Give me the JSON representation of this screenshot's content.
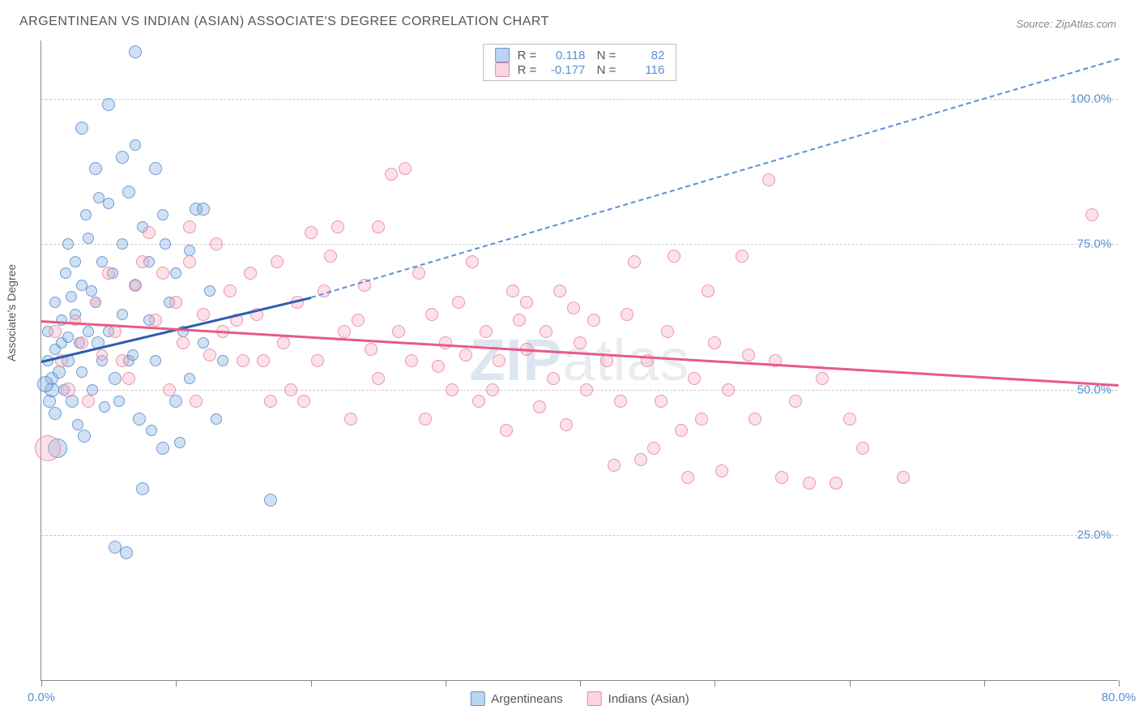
{
  "title": "ARGENTINEAN VS INDIAN (ASIAN) ASSOCIATE'S DEGREE CORRELATION CHART",
  "source": "Source: ZipAtlas.com",
  "yaxis_label": "Associate's Degree",
  "watermark": "ZIPatlas",
  "chart": {
    "type": "scatter",
    "background_color": "#ffffff",
    "grid_color": "#cccccc",
    "axis_color": "#888888",
    "label_color": "#5b8fd6",
    "label_fontsize": 15,
    "title_fontsize": 16,
    "xlim": [
      0,
      80
    ],
    "ylim": [
      0,
      110
    ],
    "xticks": [
      0,
      10,
      20,
      30,
      40,
      50,
      60,
      70,
      80
    ],
    "xtick_labels": {
      "0": "0.0%",
      "80": "80.0%"
    },
    "yticks": [
      25,
      50,
      75,
      100
    ],
    "ytick_labels": [
      "25.0%",
      "50.0%",
      "75.0%",
      "100.0%"
    ],
    "series": [
      {
        "name": "Argentineans",
        "color_fill": "rgba(120,170,225,0.35)",
        "color_stroke": "rgba(90,140,200,0.8)",
        "line_color": "#2a5fb0",
        "R": "0.118",
        "N": "82",
        "trend": {
          "x1": 0,
          "y1": 55,
          "x2_solid": 20,
          "y2_solid": 66,
          "x2_dash": 80,
          "y2_dash": 107
        },
        "points": [
          {
            "x": 0.5,
            "y": 55,
            "r": 7
          },
          {
            "x": 0.5,
            "y": 60,
            "r": 7
          },
          {
            "x": 0.8,
            "y": 50,
            "r": 9
          },
          {
            "x": 0.8,
            "y": 52,
            "r": 8
          },
          {
            "x": 1,
            "y": 46,
            "r": 8
          },
          {
            "x": 1,
            "y": 57,
            "r": 7
          },
          {
            "x": 1,
            "y": 65,
            "r": 7
          },
          {
            "x": 1.2,
            "y": 40,
            "r": 12
          },
          {
            "x": 1.5,
            "y": 58,
            "r": 7
          },
          {
            "x": 1.5,
            "y": 62,
            "r": 7
          },
          {
            "x": 1.8,
            "y": 70,
            "r": 7
          },
          {
            "x": 2,
            "y": 55,
            "r": 8
          },
          {
            "x": 2,
            "y": 75,
            "r": 7
          },
          {
            "x": 2,
            "y": 59,
            "r": 7
          },
          {
            "x": 2.3,
            "y": 48,
            "r": 8
          },
          {
            "x": 2.5,
            "y": 63,
            "r": 7
          },
          {
            "x": 2.5,
            "y": 72,
            "r": 7
          },
          {
            "x": 2.8,
            "y": 58,
            "r": 7
          },
          {
            "x": 3,
            "y": 95,
            "r": 8
          },
          {
            "x": 3,
            "y": 68,
            "r": 7
          },
          {
            "x": 3,
            "y": 53,
            "r": 7
          },
          {
            "x": 3.2,
            "y": 42,
            "r": 8
          },
          {
            "x": 3.5,
            "y": 76,
            "r": 7
          },
          {
            "x": 3.5,
            "y": 60,
            "r": 7
          },
          {
            "x": 3.8,
            "y": 50,
            "r": 7
          },
          {
            "x": 4,
            "y": 88,
            "r": 8
          },
          {
            "x": 4,
            "y": 65,
            "r": 7
          },
          {
            "x": 4.2,
            "y": 58,
            "r": 8
          },
          {
            "x": 4.5,
            "y": 72,
            "r": 7
          },
          {
            "x": 4.5,
            "y": 55,
            "r": 7
          },
          {
            "x": 5,
            "y": 99,
            "r": 8
          },
          {
            "x": 5,
            "y": 82,
            "r": 7
          },
          {
            "x": 5,
            "y": 60,
            "r": 7
          },
          {
            "x": 5.3,
            "y": 70,
            "r": 7
          },
          {
            "x": 5.5,
            "y": 52,
            "r": 8
          },
          {
            "x": 5.5,
            "y": 23,
            "r": 8
          },
          {
            "x": 6,
            "y": 90,
            "r": 8
          },
          {
            "x": 6,
            "y": 75,
            "r": 7
          },
          {
            "x": 6,
            "y": 63,
            "r": 7
          },
          {
            "x": 6.3,
            "y": 22,
            "r": 8
          },
          {
            "x": 6.5,
            "y": 84,
            "r": 8
          },
          {
            "x": 6.5,
            "y": 55,
            "r": 7
          },
          {
            "x": 7,
            "y": 108,
            "r": 8
          },
          {
            "x": 7,
            "y": 92,
            "r": 7
          },
          {
            "x": 7,
            "y": 68,
            "r": 7
          },
          {
            "x": 7.3,
            "y": 45,
            "r": 8
          },
          {
            "x": 7.5,
            "y": 78,
            "r": 7
          },
          {
            "x": 7.5,
            "y": 33,
            "r": 8
          },
          {
            "x": 8,
            "y": 62,
            "r": 7
          },
          {
            "x": 8,
            "y": 72,
            "r": 7
          },
          {
            "x": 8.5,
            "y": 88,
            "r": 8
          },
          {
            "x": 8.5,
            "y": 55,
            "r": 7
          },
          {
            "x": 9,
            "y": 80,
            "r": 7
          },
          {
            "x": 9,
            "y": 40,
            "r": 8
          },
          {
            "x": 9.5,
            "y": 65,
            "r": 7
          },
          {
            "x": 10,
            "y": 70,
            "r": 7
          },
          {
            "x": 10,
            "y": 48,
            "r": 8
          },
          {
            "x": 10.5,
            "y": 60,
            "r": 7
          },
          {
            "x": 11,
            "y": 74,
            "r": 7
          },
          {
            "x": 11,
            "y": 52,
            "r": 7
          },
          {
            "x": 11.5,
            "y": 81,
            "r": 8
          },
          {
            "x": 12,
            "y": 81,
            "r": 8
          },
          {
            "x": 12,
            "y": 58,
            "r": 7
          },
          {
            "x": 12.5,
            "y": 67,
            "r": 7
          },
          {
            "x": 13,
            "y": 45,
            "r": 7
          },
          {
            "x": 13.5,
            "y": 55,
            "r": 7
          },
          {
            "x": 17,
            "y": 31,
            "r": 8
          },
          {
            "x": 4.3,
            "y": 83,
            "r": 7
          },
          {
            "x": 2.2,
            "y": 66,
            "r": 7
          },
          {
            "x": 1.3,
            "y": 53,
            "r": 8
          },
          {
            "x": 3.7,
            "y": 67,
            "r": 7
          },
          {
            "x": 5.8,
            "y": 48,
            "r": 7
          },
          {
            "x": 0.3,
            "y": 51,
            "r": 10
          },
          {
            "x": 6.8,
            "y": 56,
            "r": 7
          },
          {
            "x": 8.2,
            "y": 43,
            "r": 7
          },
          {
            "x": 4.7,
            "y": 47,
            "r": 7
          },
          {
            "x": 3.3,
            "y": 80,
            "r": 7
          },
          {
            "x": 9.2,
            "y": 75,
            "r": 7
          },
          {
            "x": 2.7,
            "y": 44,
            "r": 7
          },
          {
            "x": 1.7,
            "y": 50,
            "r": 7
          },
          {
            "x": 10.3,
            "y": 41,
            "r": 7
          },
          {
            "x": 0.6,
            "y": 48,
            "r": 8
          }
        ]
      },
      {
        "name": "Indians (Asian)",
        "color_fill": "rgba(245,170,190,0.35)",
        "color_stroke": "rgba(230,130,160,0.8)",
        "line_color": "#e85a8a",
        "R": "-0.177",
        "N": "116",
        "trend": {
          "x1": 0,
          "y1": 62,
          "x2_solid": 80,
          "y2_solid": 51
        },
        "points": [
          {
            "x": 0.5,
            "y": 40,
            "r": 16
          },
          {
            "x": 1,
            "y": 60,
            "r": 8
          },
          {
            "x": 1.5,
            "y": 55,
            "r": 8
          },
          {
            "x": 2,
            "y": 50,
            "r": 9
          },
          {
            "x": 2.5,
            "y": 62,
            "r": 7
          },
          {
            "x": 3,
            "y": 58,
            "r": 8
          },
          {
            "x": 4,
            "y": 65,
            "r": 7
          },
          {
            "x": 5,
            "y": 70,
            "r": 8
          },
          {
            "x": 5.5,
            "y": 60,
            "r": 8
          },
          {
            "x": 6,
            "y": 55,
            "r": 8
          },
          {
            "x": 7,
            "y": 68,
            "r": 8
          },
          {
            "x": 8,
            "y": 77,
            "r": 8
          },
          {
            "x": 8.5,
            "y": 62,
            "r": 8
          },
          {
            "x": 9,
            "y": 70,
            "r": 8
          },
          {
            "x": 10,
            "y": 65,
            "r": 8
          },
          {
            "x": 10.5,
            "y": 58,
            "r": 8
          },
          {
            "x": 11,
            "y": 72,
            "r": 8
          },
          {
            "x": 12,
            "y": 63,
            "r": 8
          },
          {
            "x": 12.5,
            "y": 56,
            "r": 8
          },
          {
            "x": 13,
            "y": 75,
            "r": 8
          },
          {
            "x": 13.5,
            "y": 60,
            "r": 8
          },
          {
            "x": 14,
            "y": 67,
            "r": 8
          },
          {
            "x": 15,
            "y": 55,
            "r": 8
          },
          {
            "x": 15.5,
            "y": 70,
            "r": 8
          },
          {
            "x": 16,
            "y": 63,
            "r": 8
          },
          {
            "x": 17,
            "y": 48,
            "r": 8
          },
          {
            "x": 17.5,
            "y": 72,
            "r": 8
          },
          {
            "x": 18,
            "y": 58,
            "r": 8
          },
          {
            "x": 19,
            "y": 65,
            "r": 8
          },
          {
            "x": 20,
            "y": 77,
            "r": 8
          },
          {
            "x": 20.5,
            "y": 55,
            "r": 8
          },
          {
            "x": 21,
            "y": 67,
            "r": 8
          },
          {
            "x": 22,
            "y": 78,
            "r": 8
          },
          {
            "x": 22.5,
            "y": 60,
            "r": 8
          },
          {
            "x": 23,
            "y": 45,
            "r": 8
          },
          {
            "x": 24,
            "y": 68,
            "r": 8
          },
          {
            "x": 25,
            "y": 78,
            "r": 8
          },
          {
            "x": 25,
            "y": 52,
            "r": 8
          },
          {
            "x": 26,
            "y": 87,
            "r": 8
          },
          {
            "x": 26.5,
            "y": 60,
            "r": 8
          },
          {
            "x": 27,
            "y": 88,
            "r": 8
          },
          {
            "x": 27.5,
            "y": 55,
            "r": 8
          },
          {
            "x": 28,
            "y": 70,
            "r": 8
          },
          {
            "x": 28.5,
            "y": 45,
            "r": 8
          },
          {
            "x": 29,
            "y": 63,
            "r": 8
          },
          {
            "x": 30,
            "y": 58,
            "r": 8
          },
          {
            "x": 30.5,
            "y": 50,
            "r": 8
          },
          {
            "x": 31,
            "y": 65,
            "r": 8
          },
          {
            "x": 32,
            "y": 72,
            "r": 8
          },
          {
            "x": 32.5,
            "y": 48,
            "r": 8
          },
          {
            "x": 33,
            "y": 60,
            "r": 8
          },
          {
            "x": 34,
            "y": 55,
            "r": 8
          },
          {
            "x": 34.5,
            "y": 43,
            "r": 8
          },
          {
            "x": 35,
            "y": 67,
            "r": 8
          },
          {
            "x": 36,
            "y": 57,
            "r": 8
          },
          {
            "x": 36,
            "y": 65,
            "r": 8
          },
          {
            "x": 37,
            "y": 47,
            "r": 8
          },
          {
            "x": 37.5,
            "y": 60,
            "r": 8
          },
          {
            "x": 38,
            "y": 52,
            "r": 8
          },
          {
            "x": 38.5,
            "y": 67,
            "r": 8
          },
          {
            "x": 39,
            "y": 44,
            "r": 8
          },
          {
            "x": 40,
            "y": 58,
            "r": 8
          },
          {
            "x": 40.5,
            "y": 50,
            "r": 8
          },
          {
            "x": 41,
            "y": 62,
            "r": 8
          },
          {
            "x": 42,
            "y": 55,
            "r": 8
          },
          {
            "x": 42.5,
            "y": 37,
            "r": 8
          },
          {
            "x": 43,
            "y": 48,
            "r": 8
          },
          {
            "x": 44,
            "y": 72,
            "r": 8
          },
          {
            "x": 44.5,
            "y": 38,
            "r": 8
          },
          {
            "x": 45,
            "y": 55,
            "r": 8
          },
          {
            "x": 46,
            "y": 48,
            "r": 8
          },
          {
            "x": 46.5,
            "y": 60,
            "r": 8
          },
          {
            "x": 47,
            "y": 73,
            "r": 8
          },
          {
            "x": 48,
            "y": 35,
            "r": 8
          },
          {
            "x": 48.5,
            "y": 52,
            "r": 8
          },
          {
            "x": 49,
            "y": 45,
            "r": 8
          },
          {
            "x": 50,
            "y": 58,
            "r": 8
          },
          {
            "x": 50.5,
            "y": 36,
            "r": 8
          },
          {
            "x": 51,
            "y": 50,
            "r": 8
          },
          {
            "x": 52,
            "y": 73,
            "r": 8
          },
          {
            "x": 53,
            "y": 45,
            "r": 8
          },
          {
            "x": 54,
            "y": 86,
            "r": 8
          },
          {
            "x": 54.5,
            "y": 55,
            "r": 8
          },
          {
            "x": 55,
            "y": 35,
            "r": 8
          },
          {
            "x": 56,
            "y": 48,
            "r": 8
          },
          {
            "x": 57,
            "y": 34,
            "r": 8
          },
          {
            "x": 58,
            "y": 52,
            "r": 8
          },
          {
            "x": 59,
            "y": 34,
            "r": 8
          },
          {
            "x": 60,
            "y": 45,
            "r": 8
          },
          {
            "x": 61,
            "y": 40,
            "r": 8
          },
          {
            "x": 64,
            "y": 35,
            "r": 8
          },
          {
            "x": 78,
            "y": 80,
            "r": 8
          },
          {
            "x": 3.5,
            "y": 48,
            "r": 8
          },
          {
            "x": 4.5,
            "y": 56,
            "r": 7
          },
          {
            "x": 6.5,
            "y": 52,
            "r": 8
          },
          {
            "x": 9.5,
            "y": 50,
            "r": 8
          },
          {
            "x": 11.5,
            "y": 48,
            "r": 8
          },
          {
            "x": 14.5,
            "y": 62,
            "r": 8
          },
          {
            "x": 16.5,
            "y": 55,
            "r": 8
          },
          {
            "x": 18.5,
            "y": 50,
            "r": 8
          },
          {
            "x": 21.5,
            "y": 73,
            "r": 8
          },
          {
            "x": 23.5,
            "y": 62,
            "r": 8
          },
          {
            "x": 19.5,
            "y": 48,
            "r": 8
          },
          {
            "x": 31.5,
            "y": 56,
            "r": 8
          },
          {
            "x": 33.5,
            "y": 50,
            "r": 8
          },
          {
            "x": 35.5,
            "y": 62,
            "r": 8
          },
          {
            "x": 39.5,
            "y": 64,
            "r": 8
          },
          {
            "x": 43.5,
            "y": 63,
            "r": 8
          },
          {
            "x": 45.5,
            "y": 40,
            "r": 8
          },
          {
            "x": 47.5,
            "y": 43,
            "r": 8
          },
          {
            "x": 52.5,
            "y": 56,
            "r": 8
          },
          {
            "x": 49.5,
            "y": 67,
            "r": 8
          },
          {
            "x": 7.5,
            "y": 72,
            "r": 8
          },
          {
            "x": 11,
            "y": 78,
            "r": 8
          },
          {
            "x": 24.5,
            "y": 57,
            "r": 8
          },
          {
            "x": 29.5,
            "y": 54,
            "r": 8
          }
        ]
      }
    ]
  },
  "legend": [
    {
      "name": "Argentineans",
      "swatch": "blue"
    },
    {
      "name": "Indians (Asian)",
      "swatch": "pink"
    }
  ]
}
